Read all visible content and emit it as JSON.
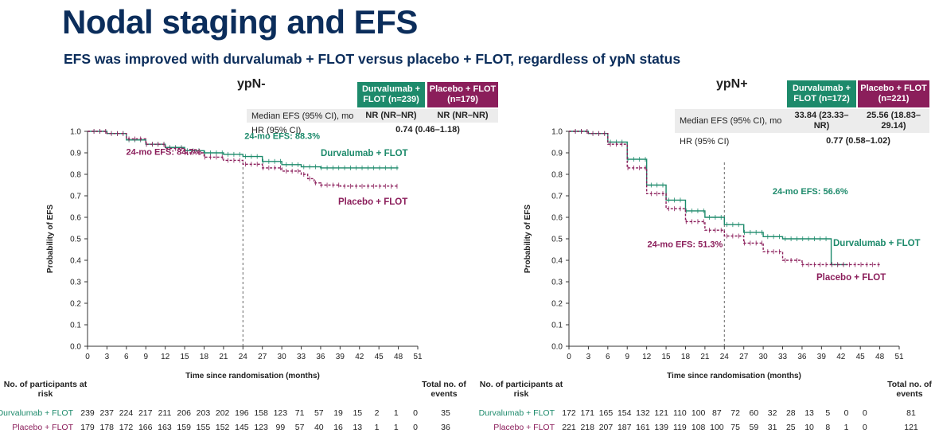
{
  "title": "Nodal staging and EFS",
  "subtitle": "EFS was improved with durvalumab + FLOT versus placebo + FLOT, regardless of ypN status",
  "colors": {
    "durva": "#1d8a6b",
    "placebo": "#8b1e5b",
    "title": "#0b2d5b"
  },
  "risk_header": {
    "no_at_risk": "No. of participants at risk",
    "total_events": "Total no. of events"
  },
  "panels": [
    {
      "label": "ypN-",
      "col_durva": "Durvalumab + FLOT (n=239)",
      "col_placebo": "Placebo + FLOT (n=179)",
      "row1_label": "Median EFS (95% CI), mo",
      "row1_durva": "NR (NR–NR)",
      "row1_placebo": "NR (NR–NR)",
      "row2_label": "HR (95% CI)",
      "row2_value": "0.74 (0.46–1.18)"
    },
    {
      "label": "ypN+",
      "col_durva": "Durvalumab + FLOT (n=172)",
      "col_placebo": "Placebo + FLOT (n=221)",
      "row1_label": "Median EFS (95% CI), mo",
      "row1_durva": "33.84 (23.33–NR)",
      "row1_placebo": "25.56 (18.83–29.14)",
      "row2_label": "HR (95% CI)",
      "row2_value": "0.77 (0.58–1.02)"
    }
  ],
  "chart_data": [
    {
      "type": "line",
      "title": "ypN-",
      "xlabel": "Time since randomisation (months)",
      "ylabel": "Probability of EFS",
      "xlim": [
        0,
        51
      ],
      "ylim": [
        0,
        1.0
      ],
      "xticks": [
        0,
        3,
        6,
        9,
        12,
        15,
        18,
        21,
        24,
        27,
        30,
        33,
        36,
        39,
        42,
        45,
        48,
        51
      ],
      "yticks": [
        "0.0",
        "0.1",
        "0.2",
        "0.3",
        "0.4",
        "0.5",
        "0.6",
        "0.7",
        "0.8",
        "0.9",
        "1.0"
      ],
      "landmark_month": 24,
      "series": [
        {
          "name": "Durvalumab + FLOT",
          "legend": "Durvalumab + FLOT",
          "annotation": "24-mo EFS: 88.3%",
          "x": [
            0,
            3,
            6,
            9,
            12,
            15,
            18,
            21,
            24,
            27,
            30,
            33,
            36,
            39,
            42,
            45,
            48
          ],
          "y": [
            1.0,
            0.99,
            0.96,
            0.94,
            0.925,
            0.91,
            0.9,
            0.893,
            0.883,
            0.86,
            0.845,
            0.835,
            0.83,
            0.83,
            0.83,
            0.83,
            0.83
          ],
          "at_risk": [
            "239",
            "237",
            "224",
            "217",
            "211",
            "206",
            "203",
            "202",
            "196",
            "158",
            "123",
            "71",
            "57",
            "19",
            "15",
            "2",
            "1",
            "0"
          ],
          "total_events": "35"
        },
        {
          "name": "Placebo + FLOT",
          "legend": "Placebo + FLOT",
          "annotation": "24-mo EFS: 84.7%",
          "x": [
            0,
            3,
            6,
            9,
            12,
            15,
            18,
            21,
            24,
            27,
            30,
            33,
            34,
            35,
            36,
            39,
            42,
            45,
            48
          ],
          "y": [
            1.0,
            0.99,
            0.965,
            0.94,
            0.92,
            0.9,
            0.88,
            0.865,
            0.847,
            0.83,
            0.815,
            0.8,
            0.78,
            0.76,
            0.75,
            0.745,
            0.745,
            0.745,
            0.745
          ],
          "at_risk": [
            "179",
            "178",
            "172",
            "166",
            "163",
            "159",
            "155",
            "152",
            "145",
            "123",
            "99",
            "57",
            "40",
            "16",
            "13",
            "1",
            "1",
            "0"
          ],
          "total_events": "36"
        }
      ]
    },
    {
      "type": "line",
      "title": "ypN+",
      "xlabel": "Time since randomisation (months)",
      "ylabel": "Probability of EFS",
      "xlim": [
        0,
        51
      ],
      "ylim": [
        0,
        1.0
      ],
      "xticks": [
        0,
        3,
        6,
        9,
        12,
        15,
        18,
        21,
        24,
        27,
        30,
        33,
        36,
        39,
        42,
        45,
        48,
        51
      ],
      "yticks": [
        "0.0",
        "0.1",
        "0.2",
        "0.3",
        "0.4",
        "0.5",
        "0.6",
        "0.7",
        "0.8",
        "0.9",
        "1.0"
      ],
      "landmark_month": 24,
      "series": [
        {
          "name": "Durvalumab + FLOT",
          "legend": "Durvalumab + FLOT",
          "annotation": "24-mo EFS: 56.6%",
          "x": [
            0,
            3,
            6,
            9,
            12,
            15,
            18,
            21,
            24,
            27,
            30,
            33,
            36,
            39,
            40,
            40.5,
            42,
            43
          ],
          "y": [
            1.0,
            0.99,
            0.95,
            0.87,
            0.75,
            0.68,
            0.63,
            0.6,
            0.566,
            0.53,
            0.51,
            0.5,
            0.5,
            0.5,
            0.5,
            0.38,
            0.38,
            0.38
          ],
          "at_risk": [
            "172",
            "171",
            "165",
            "154",
            "132",
            "121",
            "110",
            "100",
            "87",
            "72",
            "60",
            "32",
            "28",
            "13",
            "5",
            "0",
            "0"
          ],
          "total_events": "81"
        },
        {
          "name": "Placebo + FLOT",
          "legend": "Placebo + FLOT",
          "annotation": "24-mo EFS: 51.3%",
          "x": [
            0,
            3,
            6,
            9,
            12,
            15,
            18,
            21,
            24,
            27,
            30,
            33,
            36,
            39,
            42,
            45,
            48
          ],
          "y": [
            1.0,
            0.99,
            0.94,
            0.83,
            0.71,
            0.64,
            0.58,
            0.54,
            0.513,
            0.48,
            0.44,
            0.4,
            0.38,
            0.38,
            0.38,
            0.38,
            0.38
          ],
          "at_risk": [
            "221",
            "218",
            "207",
            "187",
            "161",
            "139",
            "119",
            "108",
            "100",
            "75",
            "59",
            "31",
            "25",
            "10",
            "8",
            "1",
            "0"
          ],
          "total_events": "121"
        }
      ]
    }
  ]
}
